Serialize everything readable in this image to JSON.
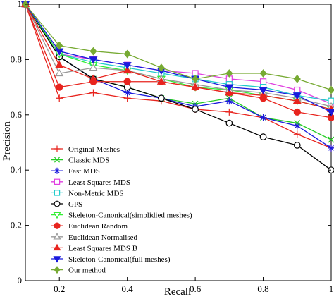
{
  "chart_data": {
    "type": "line",
    "title": "",
    "xlabel": "Recall",
    "ylabel": "Precision",
    "xlim": [
      0.1,
      1.0
    ],
    "ylim": [
      0,
      1.0
    ],
    "xticks": [
      "0.2",
      "0.4",
      "0.6",
      "0.8",
      "1"
    ],
    "yticks": [
      "0",
      "0.2",
      "0.4",
      "0.6",
      "0.8",
      "1"
    ],
    "grid": false,
    "legend_position": "bottom-left",
    "x": [
      0.1,
      0.2,
      0.3,
      0.4,
      0.5,
      0.6,
      0.7,
      0.8,
      0.9,
      1.0
    ],
    "series": [
      {
        "name": "Original Meshes",
        "color": "#e8241e",
        "marker": "plus",
        "values": [
          1.0,
          0.66,
          0.68,
          0.66,
          0.65,
          0.62,
          0.61,
          0.59,
          0.53,
          0.48
        ]
      },
      {
        "name": "Classic MDS",
        "color": "#22cc22",
        "marker": "x",
        "values": [
          1.0,
          0.81,
          0.73,
          0.7,
          0.66,
          0.64,
          0.66,
          0.59,
          0.57,
          0.51
        ]
      },
      {
        "name": "Fast MDS",
        "color": "#1a1add",
        "marker": "asterisk",
        "values": [
          1.0,
          0.81,
          0.73,
          0.68,
          0.66,
          0.63,
          0.65,
          0.59,
          0.56,
          0.48
        ]
      },
      {
        "name": "Least Squares MDS",
        "color": "#e040e0",
        "marker": "square",
        "values": [
          1.0,
          0.82,
          0.8,
          0.78,
          0.76,
          0.75,
          0.73,
          0.72,
          0.69,
          0.64
        ]
      },
      {
        "name": "Non-Metric MDS",
        "color": "#22cccc",
        "marker": "square",
        "values": [
          1.0,
          0.82,
          0.79,
          0.77,
          0.75,
          0.73,
          0.71,
          0.7,
          0.67,
          0.65
        ]
      },
      {
        "name": "GPS",
        "color": "#000000",
        "marker": "circle",
        "values": [
          1.0,
          0.81,
          0.73,
          0.7,
          0.66,
          0.62,
          0.57,
          0.52,
          0.49,
          0.4
        ]
      },
      {
        "name": "Skeleton-Canonical(simplidied meshes)",
        "color": "#33ee33",
        "marker": "triangle-down",
        "values": [
          1.0,
          0.82,
          0.78,
          0.76,
          0.73,
          0.7,
          0.69,
          0.67,
          0.65,
          0.62
        ]
      },
      {
        "name": "Euclidean Random",
        "color": "#e8241e",
        "marker": "filled-circle",
        "values": [
          1.0,
          0.7,
          0.72,
          0.72,
          0.72,
          0.7,
          0.68,
          0.66,
          0.61,
          0.59
        ]
      },
      {
        "name": "Euclidean Normalised",
        "color": "#999999",
        "marker": "triangle-up",
        "values": [
          1.0,
          0.75,
          0.77,
          0.76,
          0.73,
          0.71,
          0.69,
          0.68,
          0.66,
          0.63
        ]
      },
      {
        "name": "Least Squares MDS B",
        "color": "#e8241e",
        "marker": "filled-triangle-up",
        "values": [
          1.0,
          0.78,
          0.73,
          0.76,
          0.72,
          0.7,
          0.68,
          0.67,
          0.65,
          0.62
        ]
      },
      {
        "name": "Skeleton-Canonical(full meshes)",
        "color": "#1a1add",
        "marker": "filled-triangle-down",
        "values": [
          1.0,
          0.83,
          0.8,
          0.78,
          0.76,
          0.73,
          0.7,
          0.69,
          0.67,
          0.61
        ]
      },
      {
        "name": "Our method",
        "color": "#77aa33",
        "marker": "filled-diamond",
        "values": [
          1.0,
          0.85,
          0.83,
          0.82,
          0.77,
          0.73,
          0.75,
          0.75,
          0.73,
          0.69
        ]
      }
    ]
  }
}
